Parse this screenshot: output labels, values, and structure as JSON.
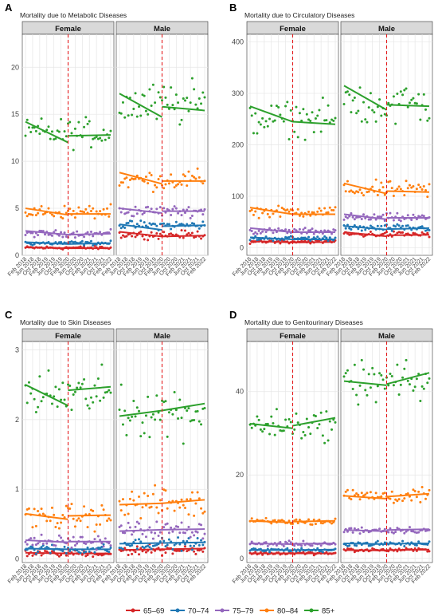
{
  "legend": [
    {
      "label": "65–69",
      "color": "#d62728"
    },
    {
      "label": "70–74",
      "color": "#1f77b4"
    },
    {
      "label": "75–79",
      "color": "#9467bd"
    },
    {
      "label": "80–84",
      "color": "#ff7f0e"
    },
    {
      "label": "85+",
      "color": "#2ca02c"
    }
  ],
  "x_tick_labels": [
    "Feb 2018",
    "Jun 2018",
    "Oct 2018",
    "Feb 2019",
    "Jun 2019",
    "Oct 2019",
    "Feb 2020",
    "Jun 2020",
    "Oct 2020",
    "Feb 2021",
    "Jun 2021",
    "Oct 2021",
    "Feb 2022"
  ],
  "intervention": "Feb 2020",
  "facet_labels": [
    "Female",
    "Male"
  ],
  "chart_data": [
    {
      "panel": "A",
      "title": "Mortality due to Metabolic Diseases",
      "type": "scatter",
      "ylim": [
        0,
        23.5
      ],
      "yticks": [
        0,
        5,
        10,
        15,
        20
      ],
      "facets": {
        "Female": [
          {
            "name": "65–69",
            "base": 0.8,
            "noise": 0.15,
            "fit": [
              [
                0.85,
                0.75
              ],
              [
                0.75,
                0.75
              ]
            ]
          },
          {
            "name": "70–74",
            "base": 1.3,
            "noise": 0.2,
            "fit": [
              [
                1.4,
                1.2
              ],
              [
                1.2,
                1.3
              ]
            ]
          },
          {
            "name": "75–79",
            "base": 2.3,
            "noise": 0.3,
            "fit": [
              [
                2.6,
                2.2
              ],
              [
                2.2,
                2.3
              ]
            ]
          },
          {
            "name": "80–84",
            "base": 4.6,
            "noise": 0.6,
            "fit": [
              [
                5.0,
                4.3
              ],
              [
                4.4,
                4.4
              ]
            ]
          },
          {
            "name": "85+",
            "base": 13.0,
            "noise": 1.3,
            "fit": [
              [
                14.2,
                12.0
              ],
              [
                12.7,
                12.8
              ]
            ]
          }
        ],
        "Male": [
          {
            "name": "65–69",
            "base": 2.2,
            "noise": 0.35,
            "fit": [
              [
                2.5,
                2.0
              ],
              [
                2.0,
                2.1
              ]
            ]
          },
          {
            "name": "70–74",
            "base": 3.2,
            "noise": 0.4,
            "fit": [
              [
                3.3,
                2.7
              ],
              [
                3.1,
                3.2
              ]
            ]
          },
          {
            "name": "75–79",
            "base": 4.7,
            "noise": 0.5,
            "fit": [
              [
                5.0,
                4.5
              ],
              [
                4.7,
                4.7
              ]
            ]
          },
          {
            "name": "80–84",
            "base": 8.0,
            "noise": 0.9,
            "fit": [
              [
                8.8,
                7.6
              ],
              [
                7.9,
                7.9
              ]
            ]
          },
          {
            "name": "85+",
            "base": 16.0,
            "noise": 2.0,
            "fit": [
              [
                17.2,
                14.7
              ],
              [
                15.8,
                15.4
              ]
            ]
          }
        ]
      }
    },
    {
      "panel": "B",
      "title": "Mortality due to Circulatory Diseases",
      "type": "scatter",
      "ylim": [
        -15,
        415
      ],
      "yticks": [
        0,
        100,
        200,
        300,
        400
      ],
      "facets": {
        "Female": [
          {
            "name": "65–69",
            "base": 12,
            "noise": 3,
            "fit": [
              [
                13,
                10
              ],
              [
                10,
                11
              ]
            ]
          },
          {
            "name": "70–74",
            "base": 18,
            "noise": 4,
            "fit": [
              [
                20,
                16
              ],
              [
                16,
                16
              ]
            ]
          },
          {
            "name": "75–79",
            "base": 32,
            "noise": 5,
            "fit": [
              [
                38,
                30
              ],
              [
                30,
                30
              ]
            ]
          },
          {
            "name": "80–84",
            "base": 70,
            "noise": 9,
            "fit": [
              [
                78,
                65
              ],
              [
                65,
                65
              ]
            ]
          },
          {
            "name": "85+",
            "base": 250,
            "noise": 28,
            "fit": [
              [
                275,
                245
              ],
              [
                245,
                240
              ]
            ]
          }
        ],
        "Male": [
          {
            "name": "65–69",
            "base": 26,
            "noise": 5,
            "fit": [
              [
                30,
                22
              ],
              [
                24,
                25
              ]
            ]
          },
          {
            "name": "70–74",
            "base": 38,
            "noise": 6,
            "fit": [
              [
                42,
                35
              ],
              [
                36,
                38
              ]
            ]
          },
          {
            "name": "75–79",
            "base": 58,
            "noise": 7,
            "fit": [
              [
                65,
                55
              ],
              [
                58,
                58
              ]
            ]
          },
          {
            "name": "80–84",
            "base": 112,
            "noise": 14,
            "fit": [
              [
                125,
                105
              ],
              [
                110,
                108
              ]
            ]
          },
          {
            "name": "85+",
            "base": 280,
            "noise": 40,
            "fit": [
              [
                315,
                268
              ],
              [
                278,
                275
              ]
            ]
          }
        ]
      }
    },
    {
      "panel": "C",
      "title": "Mortality due to Skin Diseases",
      "type": "scatter",
      "ylim": [
        -0.05,
        3.12
      ],
      "yticks": [
        0,
        1,
        2,
        3
      ],
      "facets": {
        "Female": [
          {
            "name": "65–69",
            "base": 0.08,
            "noise": 0.04,
            "fit": [
              [
                0.09,
                0.08
              ],
              [
                0.08,
                0.08
              ]
            ]
          },
          {
            "name": "70–74",
            "base": 0.14,
            "noise": 0.06,
            "fit": [
              [
                0.15,
                0.14
              ],
              [
                0.14,
                0.14
              ]
            ]
          },
          {
            "name": "75–79",
            "base": 0.25,
            "noise": 0.08,
            "fit": [
              [
                0.27,
                0.24
              ],
              [
                0.25,
                0.25
              ]
            ]
          },
          {
            "name": "80–84",
            "base": 0.6,
            "noise": 0.15,
            "fit": [
              [
                0.65,
                0.57
              ],
              [
                0.62,
                0.63
              ]
            ]
          },
          {
            "name": "85+",
            "base": 2.35,
            "noise": 0.3,
            "fit": [
              [
                2.5,
                2.2
              ],
              [
                2.42,
                2.47
              ]
            ]
          }
        ],
        "Male": [
          {
            "name": "65–69",
            "base": 0.13,
            "noise": 0.06,
            "fit": [
              [
                0.13,
                0.14
              ],
              [
                0.14,
                0.15
              ]
            ]
          },
          {
            "name": "70–74",
            "base": 0.22,
            "noise": 0.07,
            "fit": [
              [
                0.22,
                0.23
              ],
              [
                0.23,
                0.24
              ]
            ]
          },
          {
            "name": "75–79",
            "base": 0.42,
            "noise": 0.1,
            "fit": [
              [
                0.4,
                0.42
              ],
              [
                0.42,
                0.43
              ]
            ]
          },
          {
            "name": "80–84",
            "base": 0.8,
            "noise": 0.18,
            "fit": [
              [
                0.78,
                0.8
              ],
              [
                0.8,
                0.85
              ]
            ]
          },
          {
            "name": "85+",
            "base": 2.12,
            "noise": 0.32,
            "fit": [
              [
                2.05,
                2.13
              ],
              [
                2.13,
                2.23
              ]
            ]
          }
        ]
      }
    },
    {
      "panel": "D",
      "title": "Mortality due to Genitourinary Diseases",
      "type": "scatter",
      "ylim": [
        -1,
        52
      ],
      "yticks": [
        0,
        20,
        40
      ],
      "facets": {
        "Female": [
          {
            "name": "65–69",
            "base": 1.2,
            "noise": 0.3,
            "fit": [
              [
                1.2,
                1.2
              ],
              [
                1.2,
                1.2
              ]
            ]
          },
          {
            "name": "70–74",
            "base": 2.0,
            "noise": 0.4,
            "fit": [
              [
                2.0,
                2.0
              ],
              [
                2.0,
                2.1
              ]
            ]
          },
          {
            "name": "75–79",
            "base": 3.5,
            "noise": 0.5,
            "fit": [
              [
                3.6,
                3.4
              ],
              [
                3.5,
                3.6
              ]
            ]
          },
          {
            "name": "80–84",
            "base": 8.8,
            "noise": 0.7,
            "fit": [
              [
                9.0,
                8.6
              ],
              [
                8.8,
                9.0
              ]
            ]
          },
          {
            "name": "85+",
            "base": 32,
            "noise": 3,
            "fit": [
              [
                32.3,
                31.2
              ],
              [
                31.8,
                33.7
              ]
            ]
          }
        ],
        "Male": [
          {
            "name": "65–69",
            "base": 2.0,
            "noise": 0.4,
            "fit": [
              [
                2.0,
                1.9
              ],
              [
                2.0,
                2.1
              ]
            ]
          },
          {
            "name": "70–74",
            "base": 3.5,
            "noise": 0.5,
            "fit": [
              [
                3.6,
                3.4
              ],
              [
                3.5,
                3.6
              ]
            ]
          },
          {
            "name": "75–79",
            "base": 6.8,
            "noise": 0.7,
            "fit": [
              [
                6.8,
                6.5
              ],
              [
                6.8,
                7.0
              ]
            ]
          },
          {
            "name": "80–84",
            "base": 15,
            "noise": 1.5,
            "fit": [
              [
                15.0,
                14.3
              ],
              [
                14.8,
                15.5
              ]
            ]
          },
          {
            "name": "85+",
            "base": 42,
            "noise": 4,
            "fit": [
              [
                42.5,
                41.5
              ],
              [
                41.8,
                44.5
              ]
            ]
          }
        ]
      }
    }
  ]
}
